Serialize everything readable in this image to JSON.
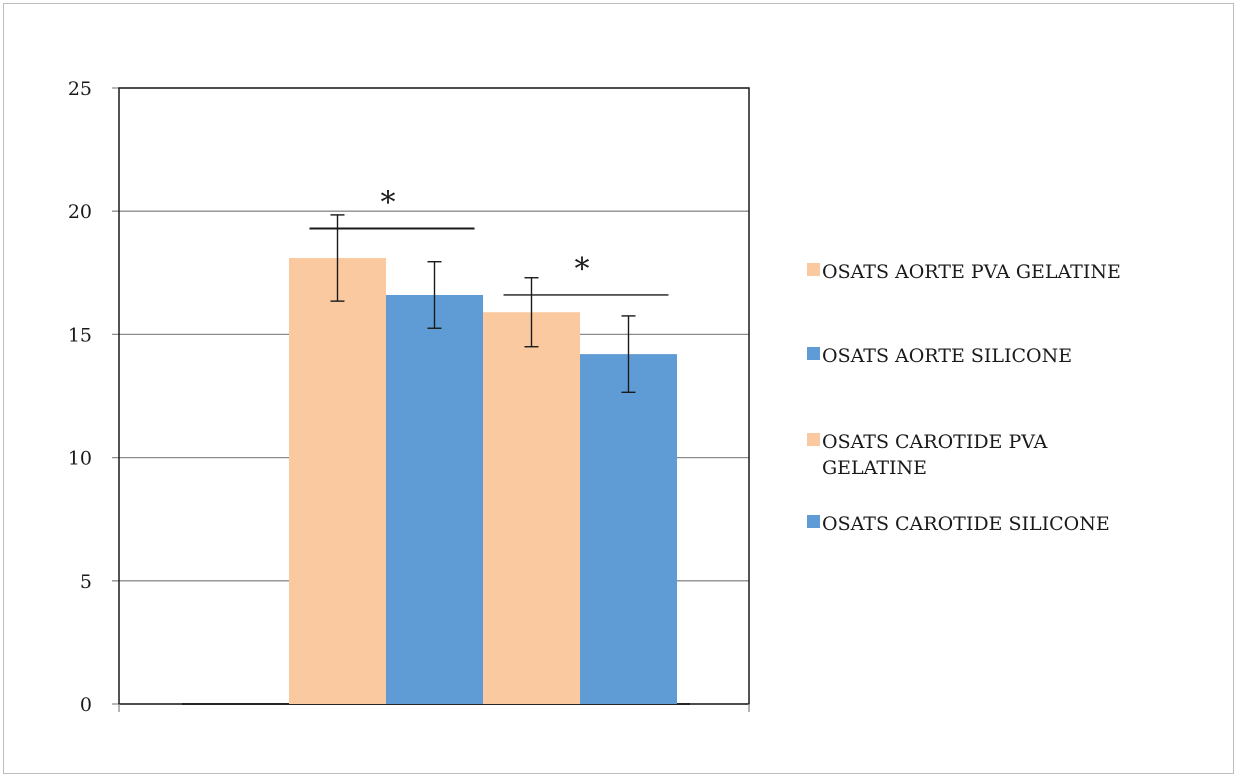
{
  "chart_data": {
    "type": "bar",
    "categories": [
      ""
    ],
    "series": [
      {
        "name": "OSATS AORTE PVA GELATINE",
        "values": [
          18.1
        ],
        "error": [
          1.75
        ],
        "color": "#FAC9A0"
      },
      {
        "name": "OSATS AORTE SILICONE",
        "values": [
          16.6
        ],
        "error": [
          1.35
        ],
        "color": "#5F9CD5"
      },
      {
        "name": "OSATS CAROTIDE PVA GELATINE",
        "values": [
          15.9
        ],
        "error": [
          1.4
        ],
        "color": "#FAC9A0"
      },
      {
        "name": "OSATS CAROTIDE SILICONE",
        "values": [
          14.2
        ],
        "error": [
          1.55
        ],
        "color": "#5F9CD5"
      }
    ],
    "ylim": [
      0,
      25
    ],
    "yticks": [
      "0",
      "5",
      "10",
      "15",
      "20",
      "25"
    ],
    "grid": true,
    "legend": "right",
    "annotations": [
      {
        "text": "*",
        "from_series": 0,
        "to_series": 1,
        "level": 19.3
      },
      {
        "text": "*",
        "from_series": 2,
        "to_series": 3,
        "level": 16.6
      }
    ]
  }
}
